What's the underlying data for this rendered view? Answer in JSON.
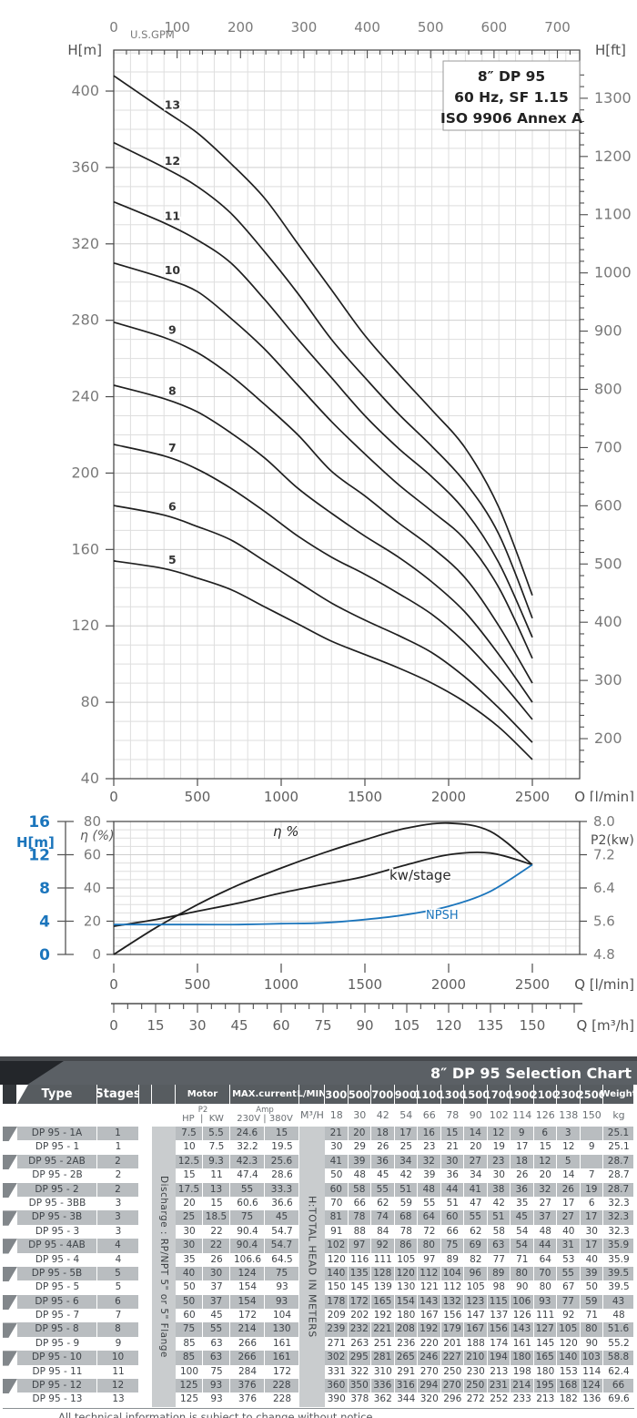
{
  "chart_data": [
    {
      "type": "line",
      "title": "8″ DP 95",
      "subtitle": [
        "60 Hz, SF 1.15",
        "ISO 9906 Annex A"
      ],
      "xlabel": "Q [l/min]",
      "x_top_label": "U.S.GPM",
      "ylabel_left": "H[m]",
      "ylabel_right": "H[ft]",
      "xlim": [
        0,
        2500
      ],
      "ylim_m": [
        40,
        421
      ],
      "y_ticks_m": {
        "min": 40,
        "max": 400,
        "step": 40
      },
      "y_ticks_ft": {
        "min": 200,
        "max": 1300,
        "step": 100,
        "minor_step": 20
      },
      "x_ticks_lmin": {
        "min": 0,
        "max": 2500,
        "step": 500
      },
      "x_ticks_gpm": {
        "min": 0,
        "max": 700,
        "step": 100,
        "minor_step": 20
      },
      "grid": "on",
      "x": [
        0,
        300,
        500,
        700,
        900,
        1100,
        1300,
        1500,
        1700,
        1900,
        2100,
        2300,
        2500
      ],
      "series": [
        {
          "name": "5",
          "values": [
            154,
            150,
            145,
            139,
            130,
            121,
            112,
            105,
            98,
            90,
            80,
            67,
            50
          ]
        },
        {
          "name": "6",
          "values": [
            183,
            178,
            172,
            165,
            154,
            143,
            132,
            123,
            115,
            106,
            93,
            77,
            59
          ]
        },
        {
          "name": "7",
          "values": [
            215,
            209,
            202,
            192,
            180,
            167,
            156,
            147,
            137,
            126,
            111,
            92,
            71
          ]
        },
        {
          "name": "8",
          "values": [
            246,
            239,
            232,
            221,
            208,
            192,
            179,
            167,
            156,
            143,
            127,
            105,
            80
          ]
        },
        {
          "name": "9",
          "values": [
            279,
            271,
            263,
            251,
            236,
            220,
            201,
            188,
            174,
            161,
            145,
            120,
            90
          ]
        },
        {
          "name": "10",
          "values": [
            310,
            302,
            295,
            281,
            265,
            246,
            227,
            210,
            194,
            180,
            165,
            140,
            103
          ]
        },
        {
          "name": "11",
          "values": [
            342,
            331,
            322,
            310,
            291,
            270,
            250,
            230,
            213,
            198,
            180,
            153,
            114
          ]
        },
        {
          "name": "12",
          "values": [
            373,
            360,
            350,
            336,
            316,
            294,
            270,
            250,
            231,
            214,
            195,
            168,
            124
          ]
        },
        {
          "name": "13",
          "values": [
            408,
            390,
            378,
            362,
            344,
            320,
            296,
            272,
            252,
            233,
            213,
            182,
            136
          ]
        }
      ]
    },
    {
      "type": "line",
      "xlabel_lmin": "Q [l/min]",
      "xlabel_m3h": "Q [m³/h]",
      "ylabel_eta": "η (%)",
      "ylabel_h": "H[m]",
      "ylabel_right": "P2(kw)",
      "eta_ticks": {
        "min": 0,
        "max": 80,
        "step": 20
      },
      "h_ticks": {
        "min": 0,
        "max": 16,
        "step": 4
      },
      "p2_ticks": [
        "8.0",
        "7.2",
        "6.4",
        "5.6",
        "4.8"
      ],
      "x_ticks_lmin": {
        "min": 0,
        "max": 2500,
        "step": 500
      },
      "x_ticks_m3h": {
        "min": 0,
        "max": 150,
        "step": 15,
        "minor_step": 5
      },
      "grid": "on",
      "x": [
        0,
        250,
        500,
        750,
        1000,
        1250,
        1500,
        1750,
        2000,
        2250,
        2500
      ],
      "series": [
        {
          "name": "η %",
          "unit": "eta_pct",
          "color": "#1f1f1f",
          "values": [
            0,
            16,
            30,
            42,
            52,
            61,
            69,
            76,
            79,
            74,
            54
          ]
        },
        {
          "name": "kw/stage",
          "unit": "kw",
          "color": "#1f1f1f",
          "values": [
            5.48,
            5.64,
            5.84,
            6.04,
            6.28,
            6.48,
            6.68,
            6.96,
            7.2,
            7.24,
            6.96
          ]
        },
        {
          "name": "NPSH",
          "unit": "m",
          "color": "#1b75bc",
          "values": [
            3.6,
            3.6,
            3.6,
            3.6,
            3.7,
            3.8,
            4.2,
            4.8,
            5.8,
            7.6,
            10.8
          ]
        }
      ],
      "curve_labels": [
        {
          "text": "η %",
          "x": 300,
          "y_local": 38,
          "color": "#2a2a2a",
          "italic": true
        },
        {
          "text": "kw/stage",
          "x": 428,
          "y_local": 86,
          "color": "#2a2a2a",
          "italic": false
        },
        {
          "text": "NPSH",
          "x": 468,
          "y_local": 129,
          "color": "#1b75bc",
          "italic": false
        }
      ]
    }
  ],
  "table": {
    "title": "8″ DP 95 Selection Chart",
    "headers": {
      "type": "Type",
      "stages": "Stages",
      "motor": "Motor",
      "max_current": "MAX.current",
      "lmin": "L/MIN",
      "weight": "Weight"
    },
    "subheaders": {
      "hp": "HP",
      "p2": "P2",
      "kw": "KW",
      "amp": "Amp",
      "v230": "230V",
      "v380": "380V",
      "m3h": "M³/H",
      "kg": "kg",
      "divider": "|"
    },
    "flow_lmin": [
      "300",
      "500",
      "700",
      "900",
      "1100",
      "1300",
      "1500",
      "1700",
      "1900",
      "2100",
      "2300",
      "2500"
    ],
    "flow_m3h": [
      "18",
      "30",
      "42",
      "54",
      "66",
      "78",
      "90",
      "102",
      "114",
      "126",
      "138",
      "150"
    ],
    "discharge_label": "Discharge : RP/NPT 5\" or 5\" Flange",
    "head_label": "H:TOTAL HEAD IN METERS",
    "rows": [
      {
        "type": "DP 95 - 1A",
        "stages": "1",
        "hp": "7.5",
        "kw": "5.5",
        "a230": "24.6",
        "a380": "15",
        "head": [
          "21",
          "20",
          "18",
          "17",
          "16",
          "15",
          "14",
          "12",
          "9",
          "6",
          "3",
          ""
        ],
        "weight": "25.1",
        "shaded": true
      },
      {
        "type": "DP 95 - 1",
        "stages": "1",
        "hp": "10",
        "kw": "7.5",
        "a230": "32.2",
        "a380": "19.5",
        "head": [
          "30",
          "29",
          "26",
          "25",
          "23",
          "21",
          "20",
          "19",
          "17",
          "15",
          "12",
          "9"
        ],
        "weight": "25.1",
        "shaded": false
      },
      {
        "type": "DP 95 - 2AB",
        "stages": "2",
        "hp": "12.5",
        "kw": "9.3",
        "a230": "42.3",
        "a380": "25.6",
        "head": [
          "41",
          "39",
          "36",
          "34",
          "32",
          "30",
          "27",
          "23",
          "18",
          "12",
          "5",
          ""
        ],
        "weight": "28.7",
        "shaded": true
      },
      {
        "type": "DP 95 - 2B",
        "stages": "2",
        "hp": "15",
        "kw": "11",
        "a230": "47.4",
        "a380": "28.6",
        "head": [
          "50",
          "48",
          "45",
          "42",
          "39",
          "36",
          "34",
          "30",
          "26",
          "20",
          "14",
          "7"
        ],
        "weight": "28.7",
        "shaded": false
      },
      {
        "type": "DP 95 - 2",
        "stages": "2",
        "hp": "17.5",
        "kw": "13",
        "a230": "55",
        "a380": "33.3",
        "head": [
          "60",
          "58",
          "55",
          "51",
          "48",
          "44",
          "41",
          "38",
          "36",
          "32",
          "26",
          "19"
        ],
        "weight": "28.7",
        "shaded": true
      },
      {
        "type": "DP 95 - 3BB",
        "stages": "3",
        "hp": "20",
        "kw": "15",
        "a230": "60.6",
        "a380": "36.6",
        "head": [
          "70",
          "66",
          "62",
          "59",
          "55",
          "51",
          "47",
          "42",
          "35",
          "27",
          "17",
          "6"
        ],
        "weight": "32.3",
        "shaded": false
      },
      {
        "type": "DP 95 - 3B",
        "stages": "3",
        "hp": "25",
        "kw": "18.5",
        "a230": "75",
        "a380": "45",
        "head": [
          "81",
          "78",
          "74",
          "68",
          "64",
          "60",
          "55",
          "51",
          "45",
          "37",
          "27",
          "17"
        ],
        "weight": "32.3",
        "shaded": true
      },
      {
        "type": "DP 95 - 3",
        "stages": "3",
        "hp": "30",
        "kw": "22",
        "a230": "90.4",
        "a380": "54.7",
        "head": [
          "91",
          "88",
          "84",
          "78",
          "72",
          "66",
          "62",
          "58",
          "54",
          "48",
          "40",
          "30"
        ],
        "weight": "32.3",
        "shaded": false
      },
      {
        "type": "DP 95 - 4AB",
        "stages": "4",
        "hp": "30",
        "kw": "22",
        "a230": "90.4",
        "a380": "54.7",
        "head": [
          "102",
          "97",
          "92",
          "86",
          "80",
          "75",
          "69",
          "63",
          "54",
          "44",
          "31",
          "17"
        ],
        "weight": "35.9",
        "shaded": true
      },
      {
        "type": "DP 95 - 4",
        "stages": "4",
        "hp": "35",
        "kw": "26",
        "a230": "106.6",
        "a380": "64.5",
        "head": [
          "120",
          "116",
          "111",
          "105",
          "97",
          "89",
          "82",
          "77",
          "71",
          "64",
          "53",
          "40"
        ],
        "weight": "35.9",
        "shaded": false
      },
      {
        "type": "DP 95 - 5B",
        "stages": "5",
        "hp": "40",
        "kw": "30",
        "a230": "124",
        "a380": "75",
        "head": [
          "140",
          "135",
          "128",
          "120",
          "112",
          "104",
          "96",
          "89",
          "80",
          "70",
          "55",
          "39"
        ],
        "weight": "39.5",
        "shaded": true
      },
      {
        "type": "DP 95 - 5",
        "stages": "5",
        "hp": "50",
        "kw": "37",
        "a230": "154",
        "a380": "93",
        "head": [
          "150",
          "145",
          "139",
          "130",
          "121",
          "112",
          "105",
          "98",
          "90",
          "80",
          "67",
          "50"
        ],
        "weight": "39.5",
        "shaded": false
      },
      {
        "type": "DP 95 - 6",
        "stages": "6",
        "hp": "50",
        "kw": "37",
        "a230": "154",
        "a380": "93",
        "head": [
          "178",
          "172",
          "165",
          "154",
          "143",
          "132",
          "123",
          "115",
          "106",
          "93",
          "77",
          "59"
        ],
        "weight": "43",
        "shaded": true
      },
      {
        "type": "DP 95 - 7",
        "stages": "7",
        "hp": "60",
        "kw": "45",
        "a230": "172",
        "a380": "104",
        "head": [
          "209",
          "202",
          "192",
          "180",
          "167",
          "156",
          "147",
          "137",
          "126",
          "111",
          "92",
          "71"
        ],
        "weight": "48",
        "shaded": false
      },
      {
        "type": "DP 95 - 8",
        "stages": "8",
        "hp": "75",
        "kw": "55",
        "a230": "214",
        "a380": "130",
        "head": [
          "239",
          "232",
          "221",
          "208",
          "192",
          "179",
          "167",
          "156",
          "143",
          "127",
          "105",
          "80"
        ],
        "weight": "51.6",
        "shaded": true
      },
      {
        "type": "DP 95 - 9",
        "stages": "9",
        "hp": "85",
        "kw": "63",
        "a230": "266",
        "a380": "161",
        "head": [
          "271",
          "263",
          "251",
          "236",
          "220",
          "201",
          "188",
          "174",
          "161",
          "145",
          "120",
          "90"
        ],
        "weight": "55.2",
        "shaded": false
      },
      {
        "type": "DP 95 - 10",
        "stages": "10",
        "hp": "85",
        "kw": "63",
        "a230": "266",
        "a380": "161",
        "head": [
          "302",
          "295",
          "281",
          "265",
          "246",
          "227",
          "210",
          "194",
          "180",
          "165",
          "140",
          "103"
        ],
        "weight": "58.8",
        "shaded": true
      },
      {
        "type": "DP 95 - 11",
        "stages": "11",
        "hp": "100",
        "kw": "75",
        "a230": "284",
        "a380": "172",
        "head": [
          "331",
          "322",
          "310",
          "291",
          "270",
          "250",
          "230",
          "213",
          "198",
          "180",
          "153",
          "114"
        ],
        "weight": "62.4",
        "shaded": false
      },
      {
        "type": "DP 95 - 12",
        "stages": "12",
        "hp": "125",
        "kw": "93",
        "a230": "376",
        "a380": "228",
        "head": [
          "360",
          "350",
          "336",
          "316",
          "294",
          "270",
          "250",
          "231",
          "214",
          "195",
          "168",
          "124"
        ],
        "weight": "66",
        "shaded": true
      },
      {
        "type": "DP 95 - 13",
        "stages": "13",
        "hp": "125",
        "kw": "93",
        "a230": "376",
        "a380": "228",
        "head": [
          "390",
          "378",
          "362",
          "344",
          "320",
          "296",
          "272",
          "252",
          "233",
          "213",
          "182",
          "136"
        ],
        "weight": "69.6",
        "shaded": false
      }
    ]
  },
  "footer": "All technical information is subject to change without notice.",
  "colors": {
    "curve": "#1f1f1f",
    "blue": "#1b75bc",
    "grid_minor": "#dedede",
    "grid_major": "#cfcfcf",
    "axis": "#4d4d4d",
    "tick_label": "#7a7a7a",
    "header_bg": "#575c60",
    "shade": "#b9bdc0"
  }
}
